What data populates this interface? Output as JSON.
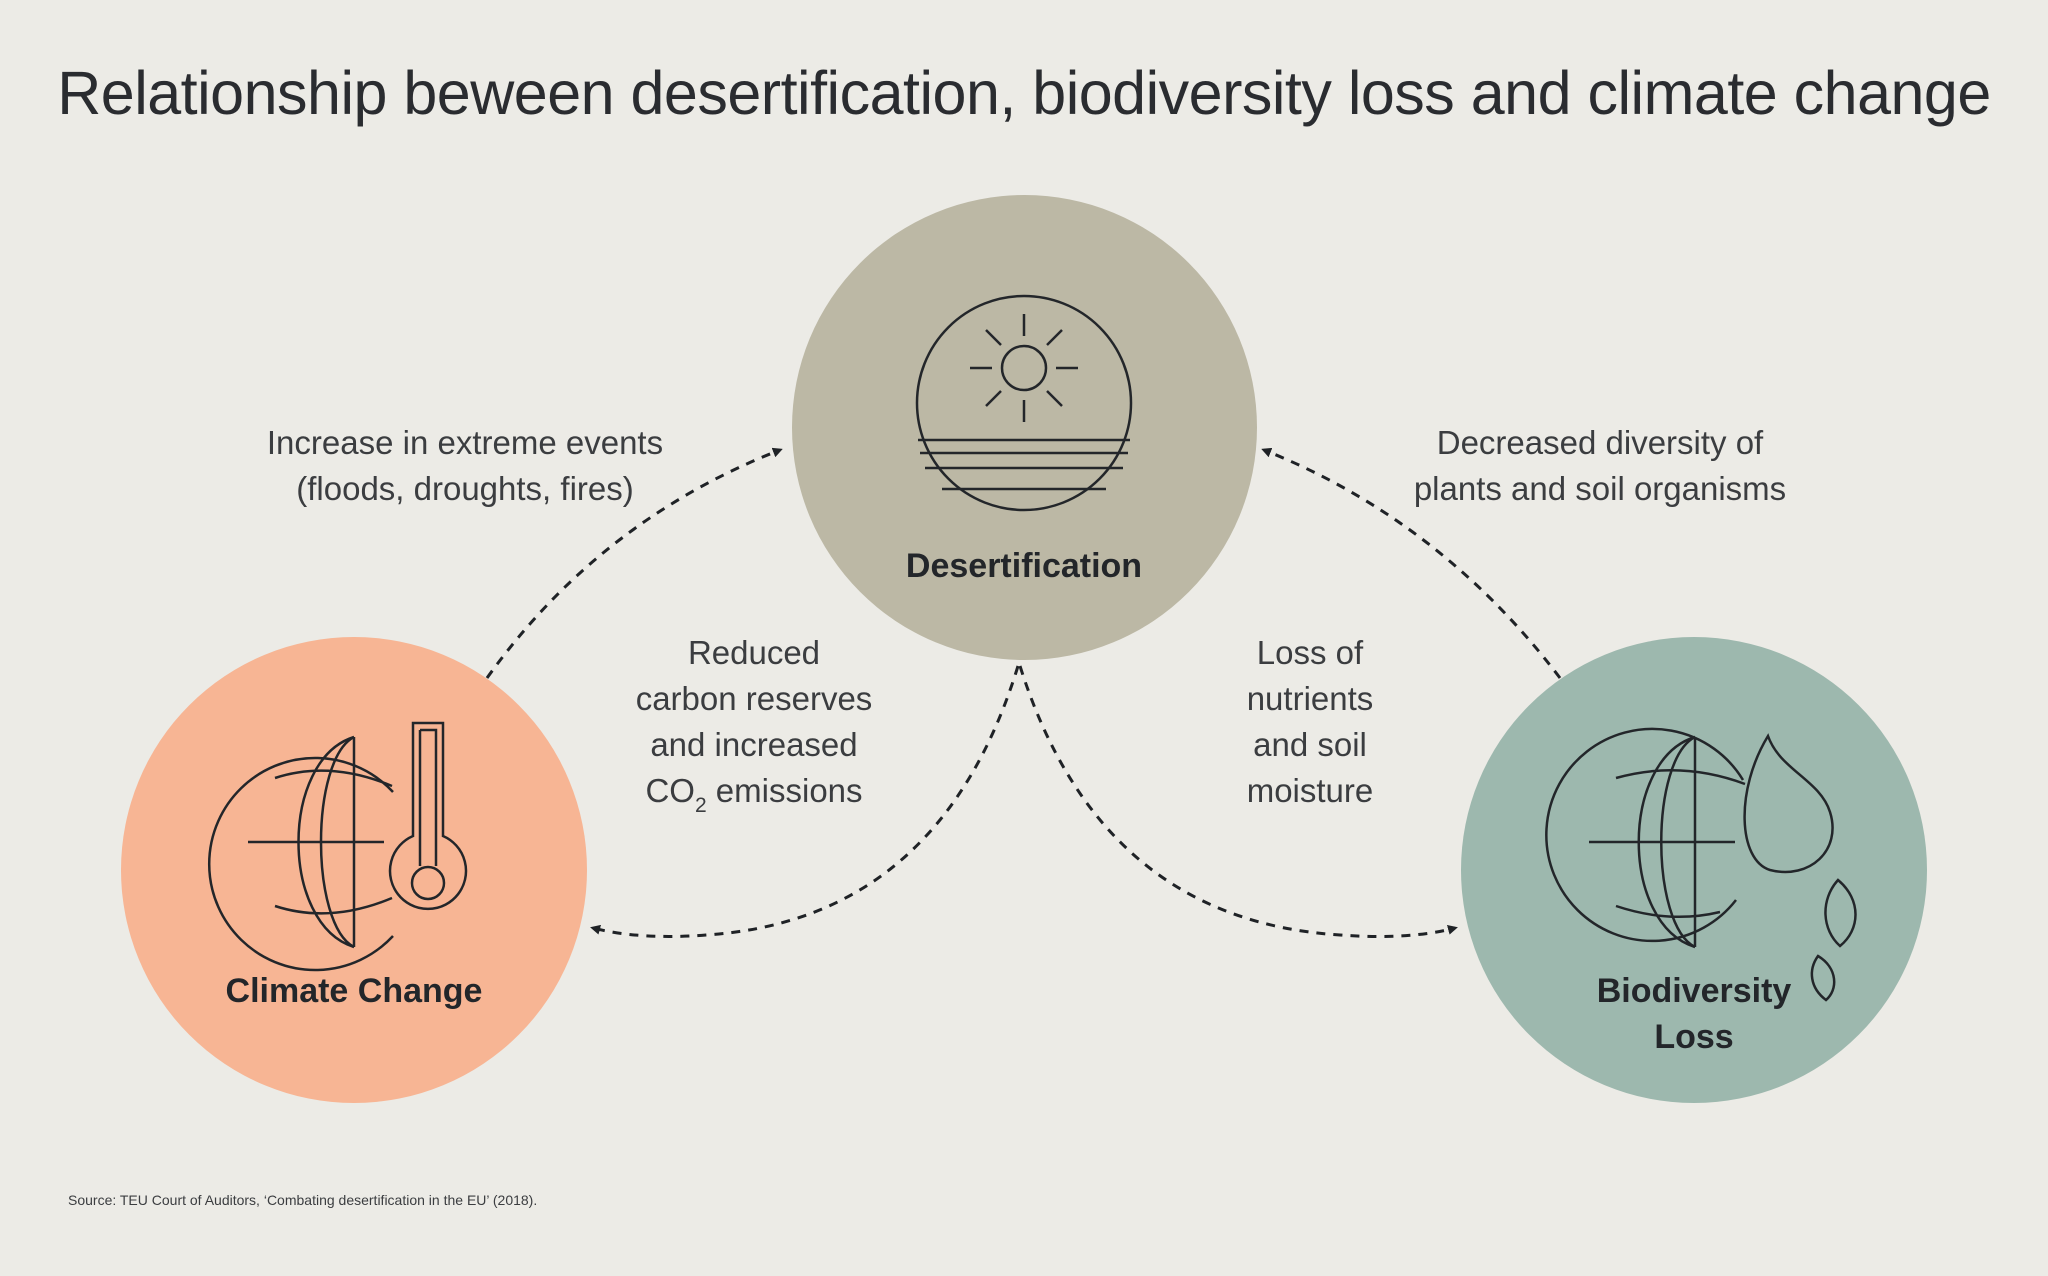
{
  "title": "Relationship beween desertification, biodiversity loss and climate change",
  "nodes": {
    "desertification": {
      "label": "Desertification",
      "color": "#bcb8a5",
      "icon": "sun-over-land-icon"
    },
    "climate_change": {
      "label": "Climate Change",
      "color": "#f7b594",
      "icon": "globe-thermometer-icon"
    },
    "biodiversity_loss": {
      "label_line1": "Biodiversity",
      "label_line2": "Loss",
      "color": "#9db8ae",
      "icon": "globe-leaf-icon"
    }
  },
  "edges": {
    "climate_to_desertification": {
      "line1": "Increase in extreme events",
      "line2": "(floods, droughts, fires)"
    },
    "biodiversity_to_desertification": {
      "line1": "Decreased diversity of",
      "line2": "plants and soil organisms"
    },
    "desertification_to_climate": {
      "line1": "Reduced",
      "line2": "carbon reserves",
      "line3": "and increased",
      "line4_prefix": "CO",
      "line4_sub": "2",
      "line4_suffix": " emissions"
    },
    "desertification_to_biodiversity": {
      "line1": "Loss of",
      "line2": "nutrients",
      "line3": "and soil",
      "line4": "moisture"
    }
  },
  "source": "Source: TEU Court of Auditors, ‘Combating desertification in the EU’ (2018)."
}
